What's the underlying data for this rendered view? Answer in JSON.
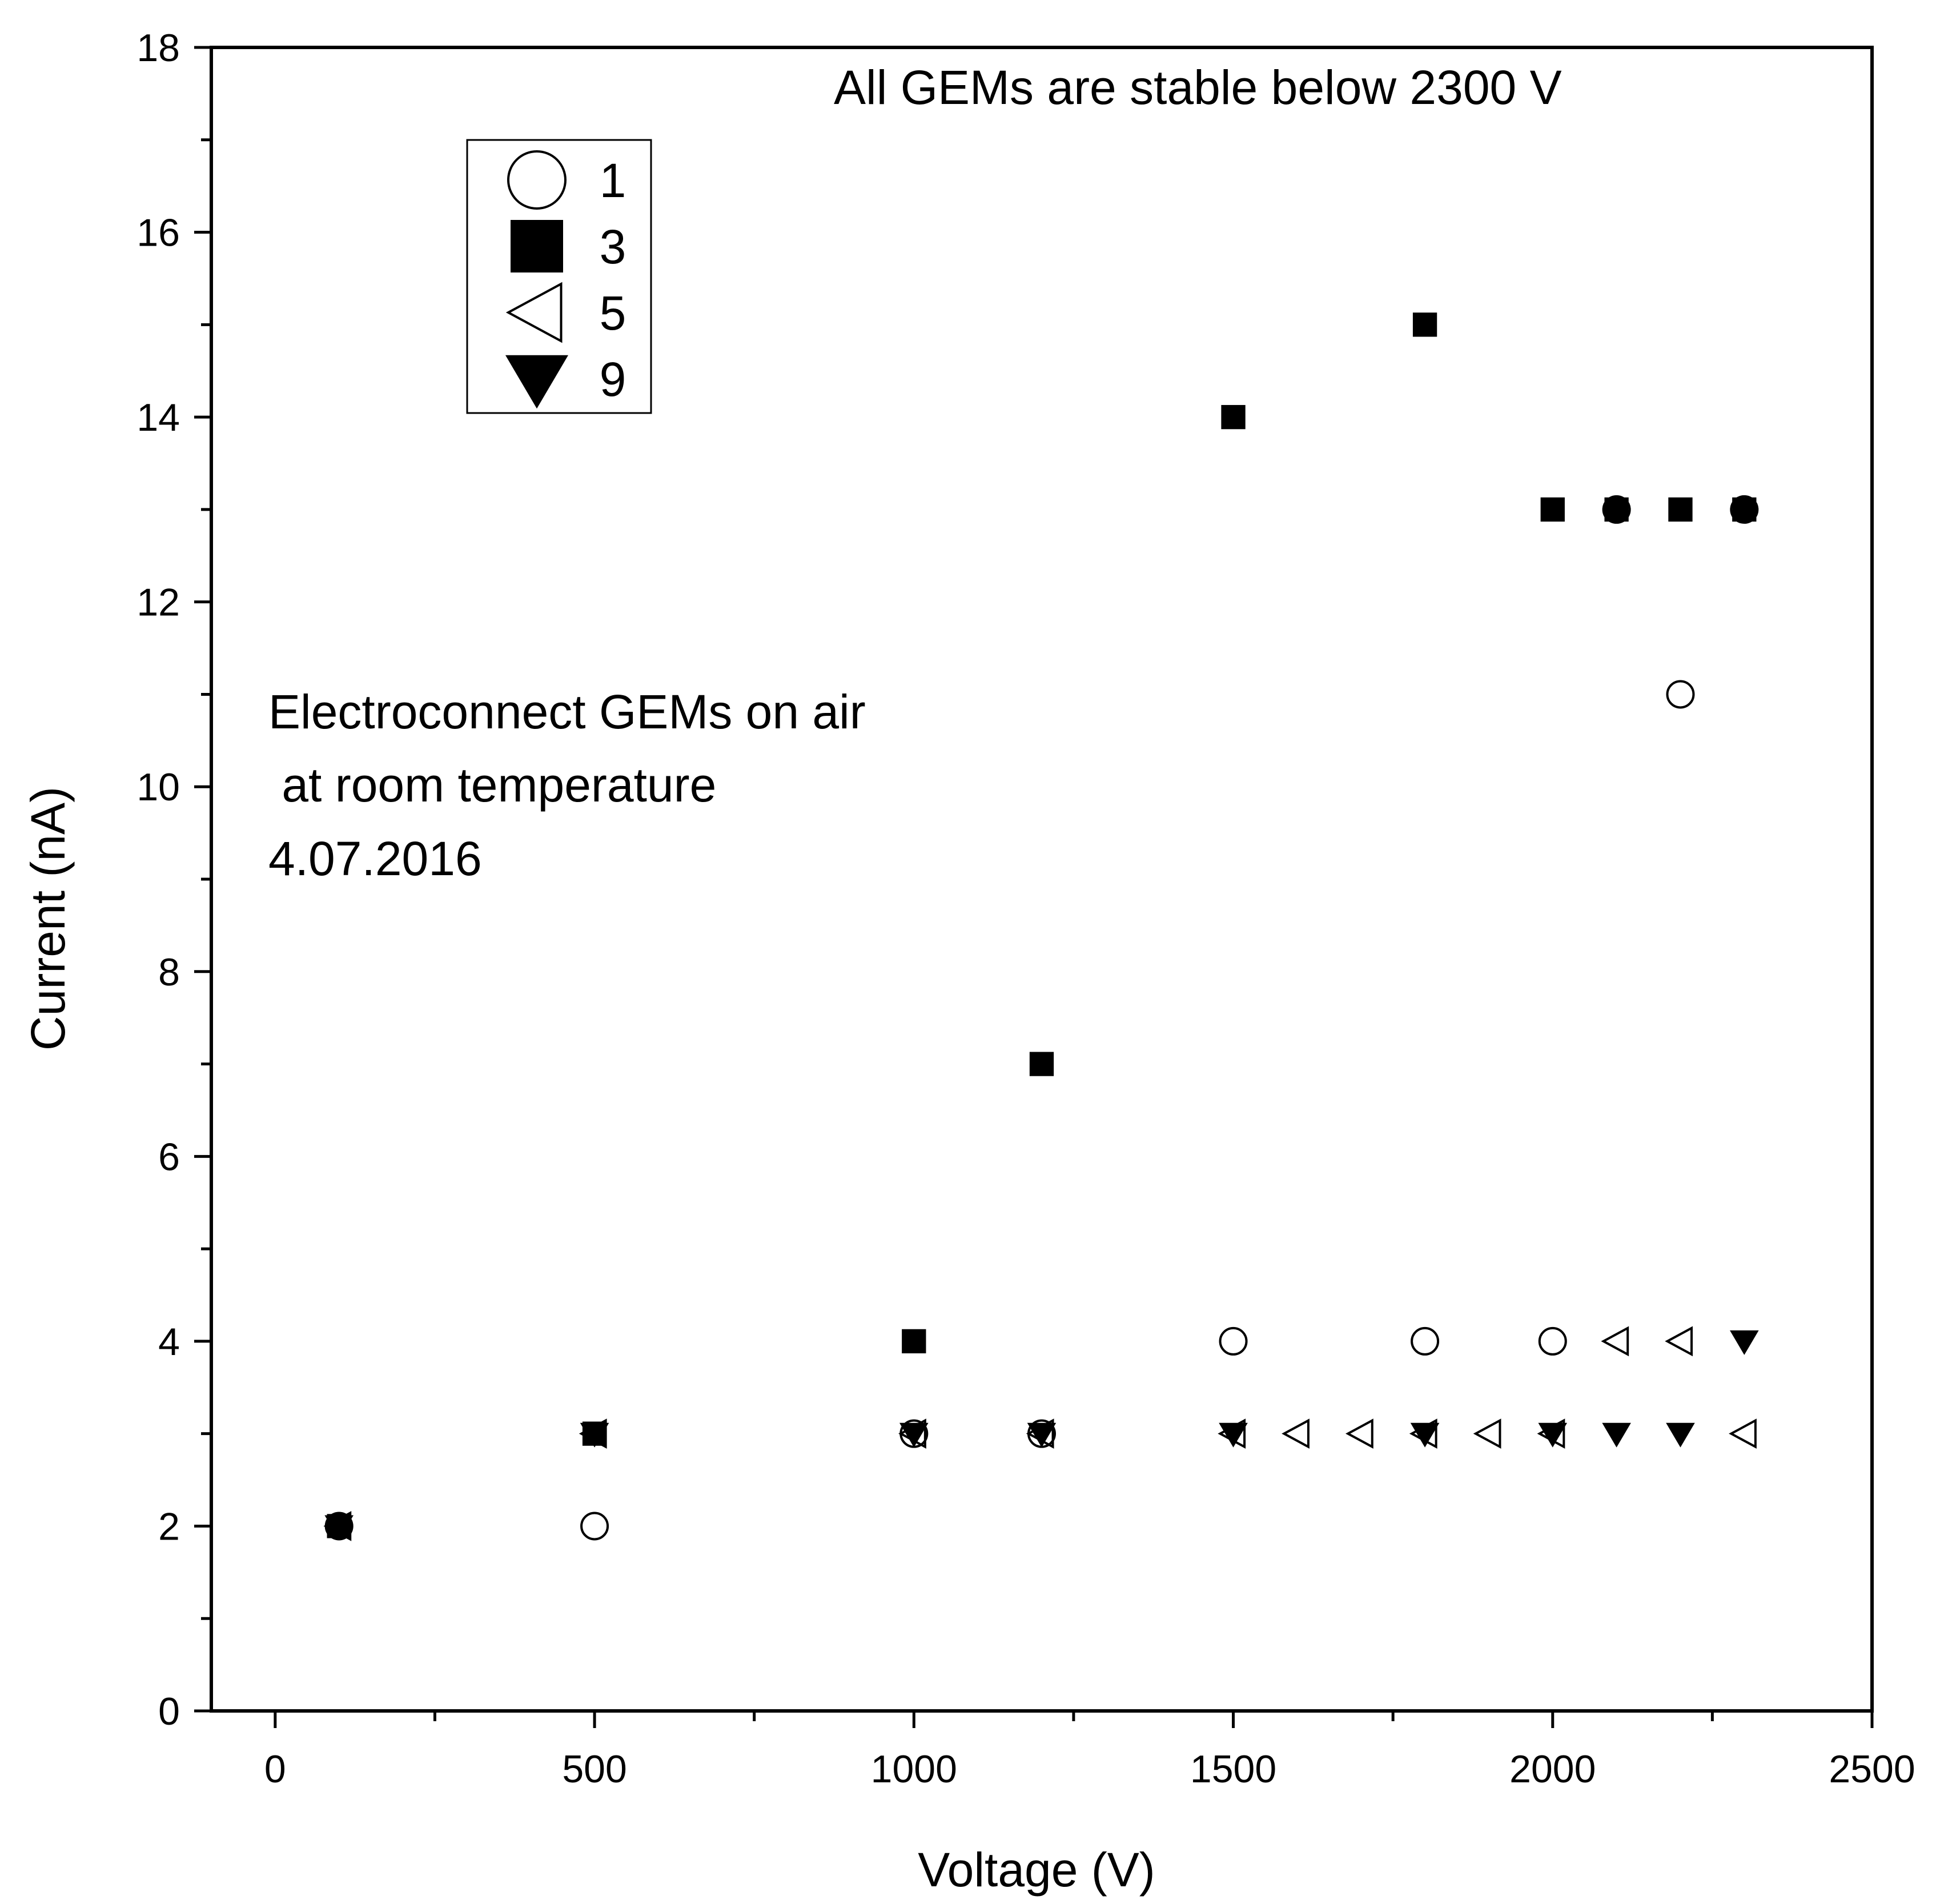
{
  "chart_data": {
    "type": "scatter",
    "xlabel": "Voltage (V)",
    "ylabel": "Current (nA)",
    "xlim": [
      -100,
      2500
    ],
    "ylim": [
      0,
      18
    ],
    "x_ticks": [
      0,
      500,
      1000,
      1500,
      2000,
      2500
    ],
    "y_ticks": [
      0,
      2,
      4,
      6,
      8,
      10,
      12,
      14,
      16,
      18
    ],
    "grid": false,
    "legend_position": "top-left",
    "annotations": {
      "stability": "All GEMs are stable below  2300 V",
      "conditions": [
        "Electroconnect GEMs on air",
        " at room temperature",
        "4.07.2016"
      ]
    },
    "series": [
      {
        "name": "1",
        "marker": "circle-open",
        "x": [
          100,
          500,
          1000,
          1200,
          1500,
          1800,
          2000,
          2100,
          2200,
          2300
        ],
        "y": [
          2,
          2,
          3,
          3,
          4,
          4,
          4,
          13,
          11,
          13
        ]
      },
      {
        "name": "3",
        "marker": "square-filled",
        "x": [
          100,
          500,
          1000,
          1200,
          1500,
          1800,
          2000,
          2100,
          2200,
          2300
        ],
        "y": [
          2,
          3,
          4,
          7,
          14,
          15,
          13,
          13,
          13,
          13
        ]
      },
      {
        "name": "5",
        "marker": "triangle-left-open",
        "x": [
          100,
          500,
          1000,
          1200,
          1500,
          1600,
          1700,
          1800,
          1900,
          2000,
          2100,
          2200,
          2300
        ],
        "y": [
          2,
          3,
          3,
          3,
          3,
          3,
          3,
          3,
          3,
          3,
          4,
          4,
          3
        ]
      },
      {
        "name": "9",
        "marker": "triangle-down-filled",
        "x": [
          100,
          500,
          1000,
          1200,
          1500,
          1800,
          2000,
          2100,
          2200,
          2300
        ],
        "y": [
          2,
          3,
          3,
          3,
          3,
          3,
          3,
          3,
          3,
          4
        ]
      }
    ]
  }
}
